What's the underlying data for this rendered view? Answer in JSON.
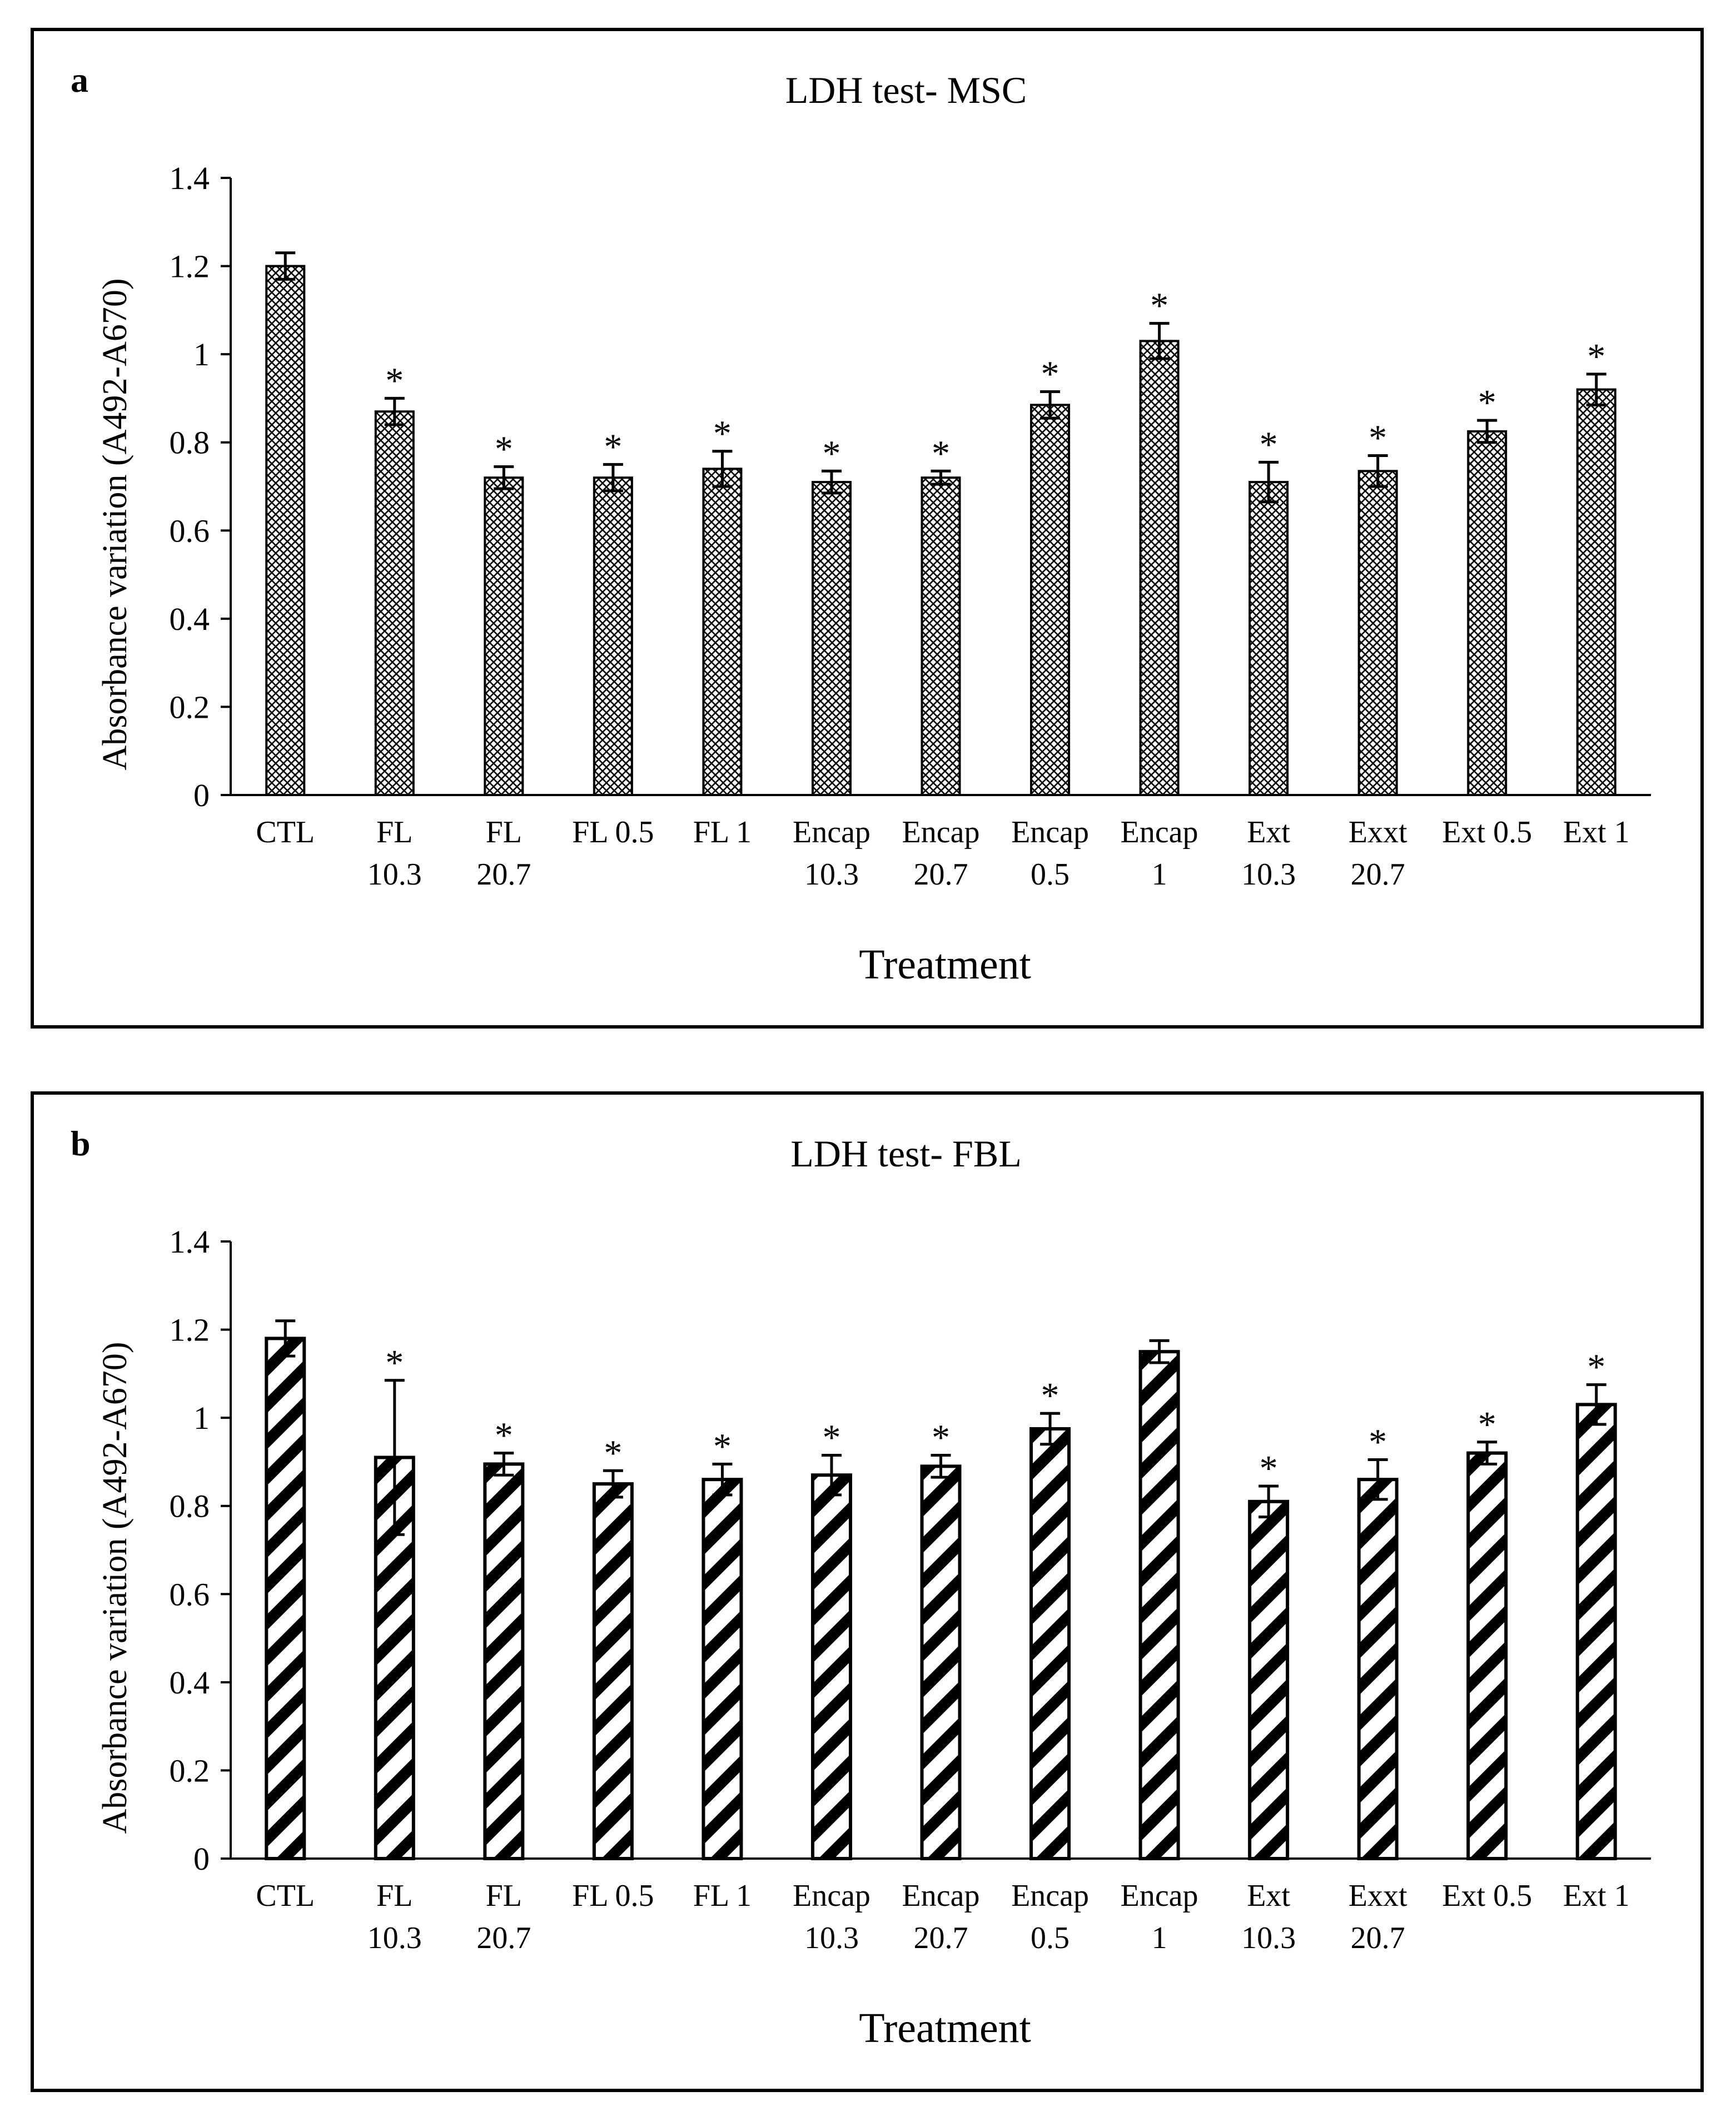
{
  "chart_data": [
    {
      "type": "bar",
      "panel_label": "a",
      "title": "LDH  test- MSC",
      "xlabel": "Treatment",
      "ylabel": "Absorbance variation  (A492-A670)",
      "ylim": [
        0,
        1.4
      ],
      "yticks": [
        "0",
        "0.2",
        "0.4",
        "0.6",
        "0.8",
        "1",
        "1.2",
        "1.4"
      ],
      "pattern": "crosshatch",
      "categories": [
        [
          "CTL"
        ],
        [
          "FL",
          "10.3"
        ],
        [
          "FL",
          "20.7"
        ],
        [
          "FL  0.5"
        ],
        [
          "FL  1"
        ],
        [
          "Encap",
          "10.3"
        ],
        [
          "Encap",
          "20.7"
        ],
        [
          "Encap",
          "0.5"
        ],
        [
          "Encap",
          "1"
        ],
        [
          "Ext",
          "10.3"
        ],
        [
          "Exxt",
          "20.7"
        ],
        [
          "Ext 0.5"
        ],
        [
          "Ext 1"
        ]
      ],
      "values": [
        1.2,
        0.87,
        0.72,
        0.72,
        0.74,
        0.71,
        0.72,
        0.885,
        1.03,
        0.71,
        0.735,
        0.825,
        0.92
      ],
      "errors": [
        0.03,
        0.03,
        0.025,
        0.03,
        0.04,
        0.025,
        0.015,
        0.03,
        0.04,
        0.045,
        0.035,
        0.025,
        0.035
      ],
      "significance": [
        "",
        "*",
        "*",
        "*",
        "*",
        "*",
        "*",
        "*",
        "*",
        "*",
        "*",
        "*",
        "*"
      ]
    },
    {
      "type": "bar",
      "panel_label": "b",
      "title": "LDH  test- FBL",
      "xlabel": "Treatment",
      "ylabel": "Absorbance variation  (A492-A670)",
      "ylim": [
        0,
        1.4
      ],
      "yticks": [
        "0",
        "0.2",
        "0.4",
        "0.6",
        "0.8",
        "1",
        "1.2",
        "1.4"
      ],
      "pattern": "diagonal",
      "categories": [
        [
          "CTL"
        ],
        [
          "FL",
          "10.3"
        ],
        [
          "FL",
          "20.7"
        ],
        [
          "FL  0.5"
        ],
        [
          "FL  1"
        ],
        [
          "Encap",
          "10.3"
        ],
        [
          "Encap",
          "20.7"
        ],
        [
          "Encap",
          "0.5"
        ],
        [
          "Encap",
          "1"
        ],
        [
          "Ext",
          "10.3"
        ],
        [
          "Exxt",
          "20.7"
        ],
        [
          "Ext 0.5"
        ],
        [
          "Ext 1"
        ]
      ],
      "values": [
        1.18,
        0.91,
        0.895,
        0.85,
        0.86,
        0.87,
        0.89,
        0.975,
        1.15,
        0.81,
        0.86,
        0.92,
        1.03
      ],
      "errors": [
        0.04,
        0.175,
        0.025,
        0.03,
        0.035,
        0.045,
        0.025,
        0.035,
        0.025,
        0.035,
        0.045,
        0.025,
        0.045
      ],
      "significance": [
        "",
        "*",
        "*",
        "*",
        "*",
        "*",
        "*",
        "*",
        "",
        "*",
        "*",
        "*",
        "*"
      ]
    }
  ]
}
